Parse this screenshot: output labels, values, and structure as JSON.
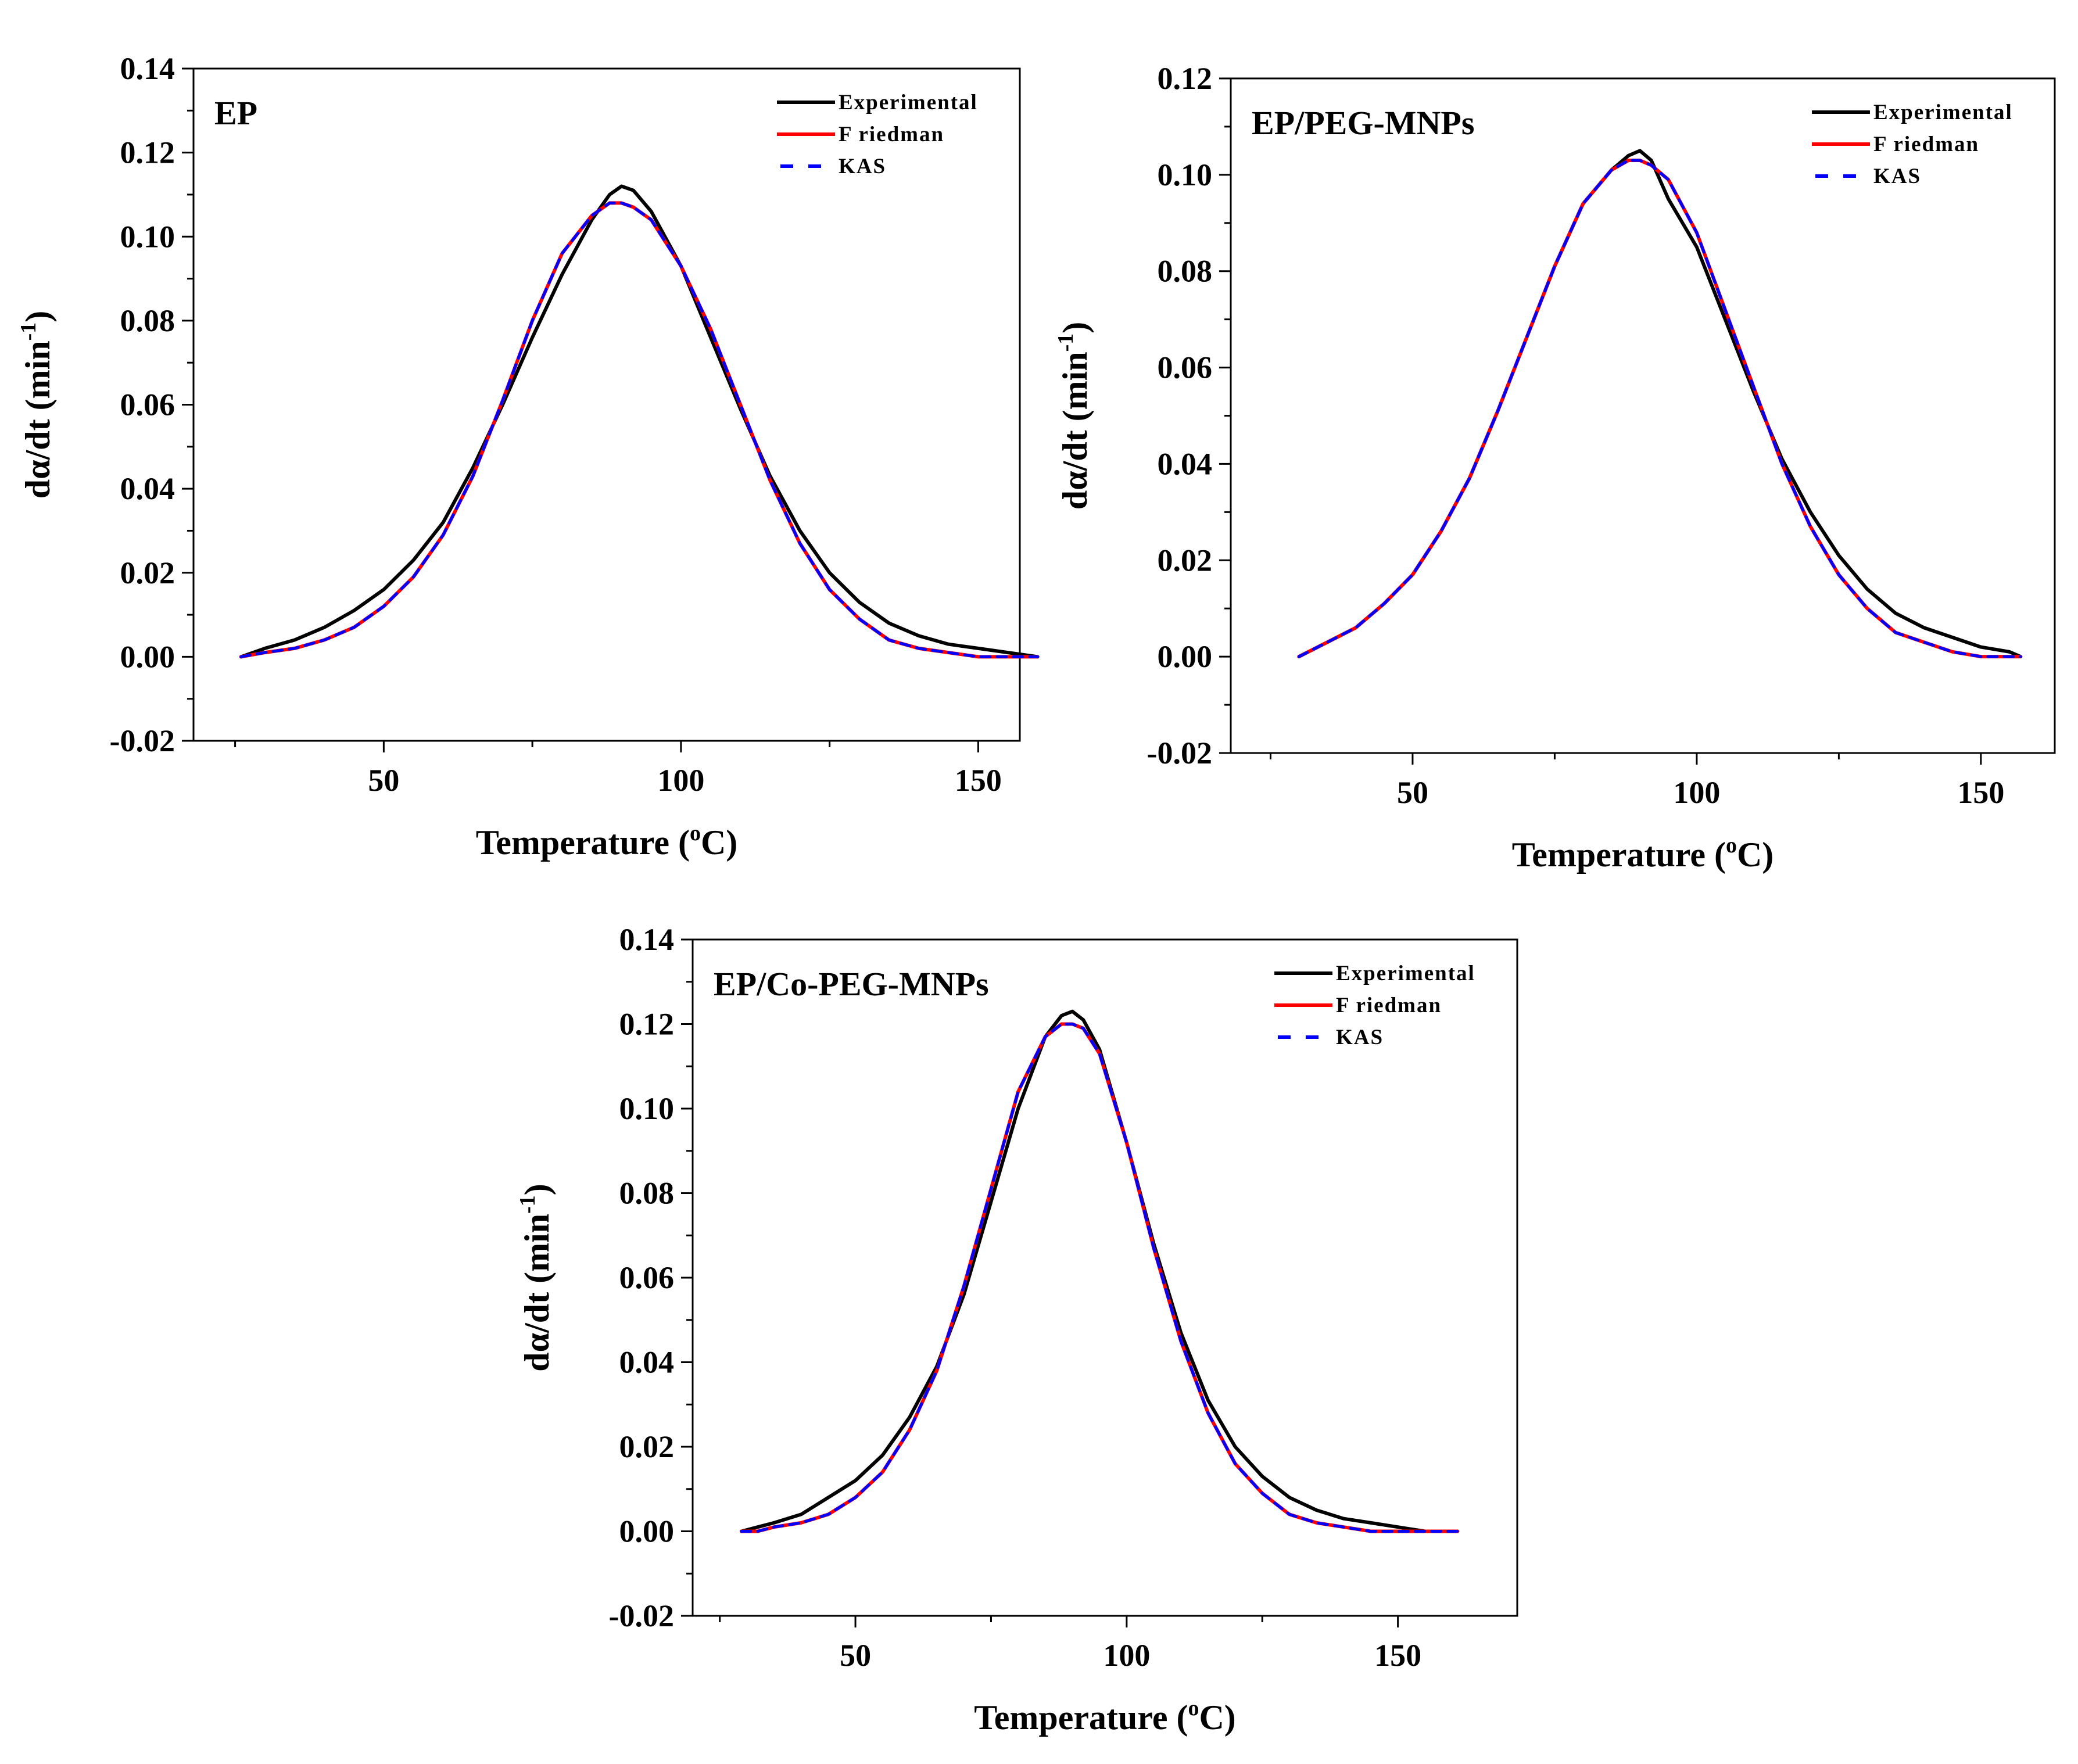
{
  "figure": {
    "ylabel": "dα/dt (min⁻¹)",
    "ylabel_main": "dα/dt (min",
    "ylabel_sup": "-1",
    "ylabel_close": ")"
  },
  "colors": {
    "experimental": "#000000",
    "friedman": "#ff0000",
    "kas": "#0000ff",
    "axis": "#000000"
  },
  "chart_data": [
    {
      "type": "line",
      "title": "EP",
      "xlabel": "Temperature (°C)",
      "xlabel_main": "Temperature (",
      "xlabel_sup": "o",
      "xlabel_unit": "C)",
      "ylabel": "dα/dt (min⁻¹)",
      "xlim": [
        18,
        157
      ],
      "ylim": [
        -0.02,
        0.14
      ],
      "xticks": [
        50,
        100,
        150
      ],
      "xtick_labels": [
        "50",
        "100",
        "150"
      ],
      "yticks": [
        -0.02,
        0.0,
        0.02,
        0.04,
        0.06,
        0.08,
        0.1,
        0.12,
        0.14
      ],
      "ytick_labels": [
        "-0.02",
        "0.00",
        "0.02",
        "0.04",
        "0.06",
        "0.08",
        "0.10",
        "0.12",
        "0.14"
      ],
      "legend": [
        "Experimental",
        "Friedman",
        "KAS"
      ],
      "legend_labels": [
        "Experimental",
        "F riedman",
        "KAS"
      ],
      "legend_position": "top-right",
      "series": [
        {
          "name": "Experimental",
          "style": "solid",
          "x": [
            26,
            30,
            35,
            40,
            45,
            50,
            55,
            60,
            65,
            70,
            75,
            80,
            85,
            88,
            90,
            92,
            95,
            100,
            105,
            110,
            115,
            120,
            125,
            130,
            135,
            140,
            145,
            150,
            155,
            160
          ],
          "y": [
            0.0,
            0.002,
            0.004,
            0.007,
            0.011,
            0.016,
            0.023,
            0.032,
            0.045,
            0.06,
            0.076,
            0.091,
            0.104,
            0.11,
            0.112,
            0.111,
            0.106,
            0.093,
            0.076,
            0.059,
            0.043,
            0.03,
            0.02,
            0.013,
            0.008,
            0.005,
            0.003,
            0.002,
            0.001,
            0.0
          ]
        },
        {
          "name": "Friedman",
          "style": "solid",
          "x": [
            26,
            30,
            35,
            40,
            45,
            50,
            55,
            60,
            65,
            70,
            75,
            80,
            85,
            88,
            90,
            92,
            95,
            100,
            105,
            110,
            115,
            120,
            125,
            130,
            135,
            140,
            145,
            150,
            155,
            160
          ],
          "y": [
            0.0,
            0.001,
            0.002,
            0.004,
            0.007,
            0.012,
            0.019,
            0.029,
            0.043,
            0.061,
            0.08,
            0.096,
            0.105,
            0.108,
            0.108,
            0.107,
            0.104,
            0.093,
            0.078,
            0.06,
            0.042,
            0.027,
            0.016,
            0.009,
            0.004,
            0.002,
            0.001,
            0.0,
            0.0,
            0.0
          ]
        },
        {
          "name": "KAS",
          "style": "dashed",
          "x": [
            26,
            30,
            35,
            40,
            45,
            50,
            55,
            60,
            65,
            70,
            75,
            80,
            85,
            88,
            90,
            92,
            95,
            100,
            105,
            110,
            115,
            120,
            125,
            130,
            135,
            140,
            145,
            150,
            155,
            160
          ],
          "y": [
            0.0,
            0.001,
            0.002,
            0.004,
            0.007,
            0.012,
            0.019,
            0.029,
            0.043,
            0.061,
            0.08,
            0.096,
            0.105,
            0.108,
            0.108,
            0.107,
            0.104,
            0.093,
            0.078,
            0.06,
            0.042,
            0.027,
            0.016,
            0.009,
            0.004,
            0.002,
            0.001,
            0.0,
            0.0,
            0.0
          ]
        }
      ]
    },
    {
      "type": "line",
      "title": "EP/PEG-MNPs",
      "xlabel": "Temperature (°C)",
      "xlabel_main": "Temperature (",
      "xlabel_sup": "o",
      "xlabel_unit": "C)",
      "ylabel": "dα/dt (min⁻¹)",
      "xlim": [
        18,
        163
      ],
      "ylim": [
        -0.02,
        0.12
      ],
      "xticks": [
        50,
        100,
        150
      ],
      "xtick_labels": [
        "50",
        "100",
        "150"
      ],
      "yticks": [
        -0.02,
        0.0,
        0.02,
        0.04,
        0.06,
        0.08,
        0.1,
        0.12
      ],
      "ytick_labels": [
        "-0.02",
        "0.00",
        "0.02",
        "0.04",
        "0.06",
        "0.08",
        "0.10",
        "0.12"
      ],
      "legend": [
        "Experimental",
        "Friedman",
        "KAS"
      ],
      "legend_labels": [
        "Experimental",
        "F riedman",
        "KAS"
      ],
      "legend_position": "top-right",
      "series": [
        {
          "name": "Experimental",
          "style": "solid",
          "x": [
            30,
            35,
            40,
            45,
            50,
            55,
            60,
            65,
            70,
            75,
            80,
            85,
            88,
            90,
            92,
            95,
            100,
            105,
            110,
            115,
            120,
            125,
            130,
            135,
            140,
            145,
            150,
            155,
            157
          ],
          "y": [
            0.0,
            0.003,
            0.006,
            0.011,
            0.017,
            0.026,
            0.037,
            0.051,
            0.066,
            0.081,
            0.094,
            0.101,
            0.104,
            0.105,
            0.103,
            0.095,
            0.085,
            0.07,
            0.055,
            0.041,
            0.03,
            0.021,
            0.014,
            0.009,
            0.006,
            0.004,
            0.002,
            0.001,
            0.0
          ]
        },
        {
          "name": "Friedman",
          "style": "solid",
          "x": [
            30,
            35,
            40,
            45,
            50,
            55,
            60,
            65,
            70,
            75,
            80,
            85,
            88,
            90,
            92,
            95,
            100,
            105,
            110,
            115,
            120,
            125,
            130,
            135,
            140,
            145,
            150,
            155,
            157
          ],
          "y": [
            0.0,
            0.003,
            0.006,
            0.011,
            0.017,
            0.026,
            0.037,
            0.051,
            0.066,
            0.081,
            0.094,
            0.101,
            0.103,
            0.103,
            0.102,
            0.099,
            0.088,
            0.072,
            0.056,
            0.04,
            0.027,
            0.017,
            0.01,
            0.005,
            0.003,
            0.001,
            0.0,
            0.0,
            0.0
          ]
        },
        {
          "name": "KAS",
          "style": "dashed",
          "x": [
            30,
            35,
            40,
            45,
            50,
            55,
            60,
            65,
            70,
            75,
            80,
            85,
            88,
            90,
            92,
            95,
            100,
            105,
            110,
            115,
            120,
            125,
            130,
            135,
            140,
            145,
            150,
            155,
            157
          ],
          "y": [
            0.0,
            0.003,
            0.006,
            0.011,
            0.017,
            0.026,
            0.037,
            0.051,
            0.066,
            0.081,
            0.094,
            0.101,
            0.103,
            0.103,
            0.102,
            0.099,
            0.088,
            0.072,
            0.056,
            0.04,
            0.027,
            0.017,
            0.01,
            0.005,
            0.003,
            0.001,
            0.0,
            0.0,
            0.0
          ]
        }
      ]
    },
    {
      "type": "line",
      "title": "EP/Co-PEG-MNPs",
      "xlabel": "Temperature (°C)",
      "xlabel_main": "Temperature (",
      "xlabel_sup": "o",
      "xlabel_unit": "C)",
      "ylabel": "dα/dt (min⁻¹)",
      "xlim": [
        20,
        172
      ],
      "ylim": [
        -0.02,
        0.14
      ],
      "xticks": [
        50,
        100,
        150
      ],
      "xtick_labels": [
        "50",
        "100",
        "150"
      ],
      "yticks": [
        -0.02,
        0.0,
        0.02,
        0.04,
        0.06,
        0.08,
        0.1,
        0.12,
        0.14
      ],
      "ytick_labels": [
        "-0.02",
        "0.00",
        "0.02",
        "0.04",
        "0.06",
        "0.08",
        "0.10",
        "0.12",
        "0.14"
      ],
      "legend": [
        "Experimental",
        "Friedman",
        "KAS"
      ],
      "legend_labels": [
        "Experimental",
        "F riedman",
        "KAS"
      ],
      "legend_position": "top-right",
      "series": [
        {
          "name": "Experimental",
          "style": "solid",
          "x": [
            29,
            32,
            35,
            40,
            45,
            50,
            55,
            60,
            65,
            70,
            75,
            80,
            85,
            88,
            90,
            92,
            95,
            100,
            105,
            110,
            115,
            120,
            125,
            130,
            135,
            140,
            145,
            150,
            155,
            161
          ],
          "y": [
            0.0,
            0.001,
            0.002,
            0.004,
            0.008,
            0.012,
            0.018,
            0.027,
            0.039,
            0.056,
            0.078,
            0.1,
            0.117,
            0.122,
            0.123,
            0.121,
            0.114,
            0.092,
            0.068,
            0.047,
            0.031,
            0.02,
            0.013,
            0.008,
            0.005,
            0.003,
            0.002,
            0.001,
            0.0,
            0.0
          ]
        },
        {
          "name": "Friedman",
          "style": "solid",
          "x": [
            29,
            32,
            35,
            40,
            45,
            50,
            55,
            60,
            65,
            70,
            75,
            80,
            85,
            88,
            90,
            92,
            95,
            100,
            105,
            110,
            115,
            120,
            125,
            130,
            135,
            140,
            145,
            150,
            155,
            161
          ],
          "y": [
            0.0,
            0.0,
            0.001,
            0.002,
            0.004,
            0.008,
            0.014,
            0.024,
            0.038,
            0.058,
            0.081,
            0.104,
            0.117,
            0.12,
            0.12,
            0.119,
            0.113,
            0.092,
            0.067,
            0.045,
            0.028,
            0.016,
            0.009,
            0.004,
            0.002,
            0.001,
            0.0,
            0.0,
            0.0,
            0.0
          ]
        },
        {
          "name": "KAS",
          "style": "dashed",
          "x": [
            29,
            32,
            35,
            40,
            45,
            50,
            55,
            60,
            65,
            70,
            75,
            80,
            85,
            88,
            90,
            92,
            95,
            100,
            105,
            110,
            115,
            120,
            125,
            130,
            135,
            140,
            145,
            150,
            155,
            161
          ],
          "y": [
            0.0,
            0.0,
            0.001,
            0.002,
            0.004,
            0.008,
            0.014,
            0.024,
            0.038,
            0.058,
            0.081,
            0.104,
            0.117,
            0.12,
            0.12,
            0.119,
            0.113,
            0.092,
            0.067,
            0.045,
            0.028,
            0.016,
            0.009,
            0.004,
            0.002,
            0.001,
            0.0,
            0.0,
            0.0,
            0.0
          ]
        }
      ]
    }
  ]
}
